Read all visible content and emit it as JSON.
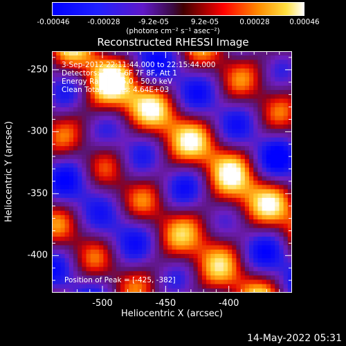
{
  "colorbar": {
    "ticks": [
      "-0.00046",
      "-0.00028",
      "-9.2e-05",
      "9.2e-05",
      "0.00028",
      "0.00046"
    ],
    "units": "(photons cm⁻² s⁻¹ asec⁻²)"
  },
  "chart_data": {
    "type": "heatmap",
    "title": "Reconstructed RHESSI Image",
    "xlabel": "Heliocentric X (arcsec)",
    "ylabel": "Heliocentric Y (arcsec)",
    "xlim": [
      -540,
      -350
    ],
    "ylim": [
      -430,
      -235
    ],
    "xticks": [
      "-500",
      "-450",
      "-400"
    ],
    "yticks": [
      "-250",
      "-300",
      "-350",
      "-400"
    ],
    "xtick_values": [
      -500,
      -450,
      -400
    ],
    "ytick_values": [
      -250,
      -300,
      -350,
      -400
    ],
    "value_range": [
      -0.00046,
      0.00046
    ],
    "colormap": "blue-purple-red-yellow-white",
    "peak": [
      -425,
      -382
    ],
    "colors": {
      "blue": "#0000ff",
      "purple": "#7a1cb0",
      "red": "#ff0000",
      "orange": "#ff8000",
      "yellow": "#ffe040",
      "white": "#ffffff"
    }
  },
  "annotations": {
    "time_range": "3-Sep-2012 22:11:44.000 to 22:15:44.000",
    "detectors": "Detectors: 3F 5F 6F 7F 8F, Att 1",
    "energy": "Energy Range: 25.0 - 50.0 keV",
    "clean": "Clean    Total counts: 4.64E+03",
    "peak_position": "Position of Peak = [-425, -382]"
  },
  "footer": {
    "timestamp": "14-May-2022 05:31"
  }
}
